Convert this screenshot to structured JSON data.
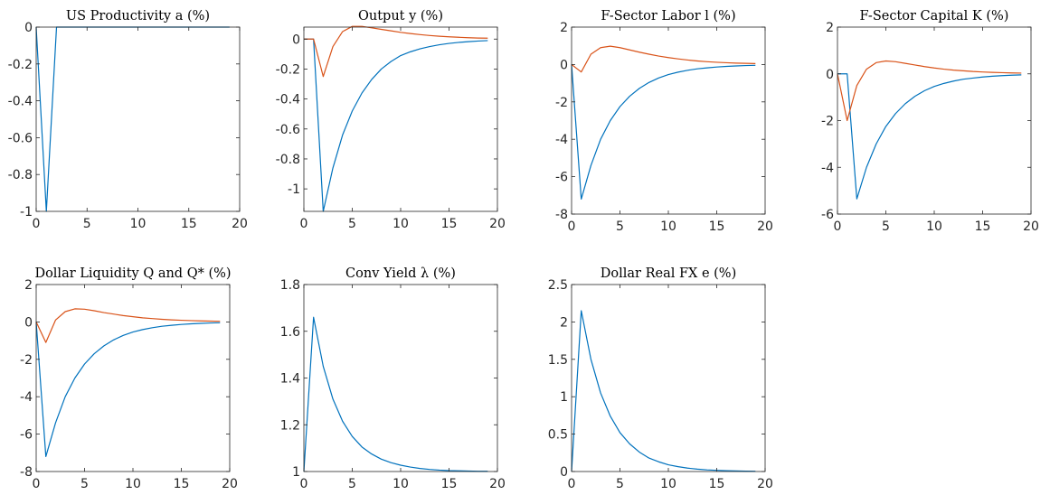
{
  "colors": {
    "series_1": "#0072BD",
    "series_2": "#D95319"
  },
  "chart_data": [
    {
      "type": "line",
      "title": "US Productivity a (%)",
      "xlim": [
        0,
        20
      ],
      "ylim": [
        -1,
        0
      ],
      "xticks": [
        0,
        5,
        10,
        15,
        20
      ],
      "yticks": [
        0,
        -0.2,
        -0.4,
        -0.6,
        -0.8,
        -1
      ],
      "xticklabels": [
        "0",
        "5",
        "10",
        "15",
        "20"
      ],
      "yticklabels": [
        "0",
        "-0.2",
        "-0.4",
        "-0.6",
        "-0.8",
        "-1"
      ],
      "series": [
        {
          "x": [
            0,
            1,
            2,
            3,
            4,
            5,
            6,
            7,
            8,
            9,
            10,
            11,
            12,
            13,
            14,
            15,
            16,
            17,
            18,
            19
          ],
          "values": [
            0,
            -1,
            0,
            0,
            0,
            0,
            0,
            0,
            0,
            0,
            0,
            0,
            0,
            0,
            0,
            0,
            0,
            0,
            0,
            0
          ],
          "color": "#0072BD"
        }
      ]
    },
    {
      "type": "line",
      "title": "Output y (%)",
      "xlim": [
        0,
        20
      ],
      "ylim": [
        -1.15,
        0.08
      ],
      "xticks": [
        0,
        5,
        10,
        15,
        20
      ],
      "yticks": [
        0,
        -0.2,
        -0.4,
        -0.6,
        -0.8,
        -1
      ],
      "xticklabels": [
        "0",
        "5",
        "10",
        "15",
        "20"
      ],
      "yticklabels": [
        "0",
        "-0.2",
        "-0.4",
        "-0.6",
        "-0.8",
        "-1"
      ],
      "series": [
        {
          "x": [
            0,
            1,
            2,
            3,
            4,
            5,
            6,
            7,
            8,
            9,
            10,
            11,
            12,
            13,
            14,
            15,
            16,
            17,
            18,
            19
          ],
          "values": [
            0,
            0,
            -1.15,
            -0.86,
            -0.64,
            -0.48,
            -0.36,
            -0.27,
            -0.2,
            -0.15,
            -0.11,
            -0.085,
            -0.065,
            -0.05,
            -0.038,
            -0.029,
            -0.022,
            -0.017,
            -0.013,
            -0.01
          ],
          "color": "#0072BD"
        },
        {
          "x": [
            0,
            1,
            2,
            3,
            4,
            5,
            6,
            7,
            8,
            9,
            10,
            11,
            12,
            13,
            14,
            15,
            16,
            17,
            18,
            19
          ],
          "values": [
            0,
            0,
            -0.25,
            -0.05,
            0.05,
            0.085,
            0.085,
            0.075,
            0.065,
            0.055,
            0.045,
            0.037,
            0.03,
            0.024,
            0.019,
            0.015,
            0.012,
            0.009,
            0.007,
            0.006
          ],
          "color": "#D95319"
        }
      ]
    },
    {
      "type": "line",
      "title": "F-Sector Labor l (%)",
      "xlim": [
        0,
        20
      ],
      "ylim": [
        -8,
        2
      ],
      "xticks": [
        0,
        5,
        10,
        15,
        20
      ],
      "yticks": [
        2,
        0,
        -2,
        -4,
        -6,
        -8
      ],
      "xticklabels": [
        "0",
        "5",
        "10",
        "15",
        "20"
      ],
      "yticklabels": [
        "2",
        "0",
        "-2",
        "-4",
        "-6",
        "-8"
      ],
      "series": [
        {
          "x": [
            0,
            1,
            2,
            3,
            4,
            5,
            6,
            7,
            8,
            9,
            10,
            11,
            12,
            13,
            14,
            15,
            16,
            17,
            18,
            19
          ],
          "values": [
            0,
            -7.2,
            -5.4,
            -4.0,
            -3.0,
            -2.25,
            -1.7,
            -1.28,
            -0.96,
            -0.72,
            -0.54,
            -0.41,
            -0.31,
            -0.23,
            -0.18,
            -0.135,
            -0.1,
            -0.076,
            -0.057,
            -0.043
          ],
          "color": "#0072BD"
        },
        {
          "x": [
            0,
            1,
            2,
            3,
            4,
            5,
            6,
            7,
            8,
            9,
            10,
            11,
            12,
            13,
            14,
            15,
            16,
            17,
            18,
            19
          ],
          "values": [
            0,
            -0.4,
            0.55,
            0.9,
            0.98,
            0.9,
            0.78,
            0.66,
            0.55,
            0.45,
            0.37,
            0.3,
            0.24,
            0.19,
            0.15,
            0.12,
            0.095,
            0.075,
            0.06,
            0.048
          ],
          "color": "#D95319"
        }
      ]
    },
    {
      "type": "line",
      "title": "F-Sector Capital K (%)",
      "xlim": [
        0,
        20
      ],
      "ylim": [
        -6,
        2
      ],
      "xticks": [
        0,
        5,
        10,
        15,
        20
      ],
      "yticks": [
        2,
        0,
        -2,
        -4,
        -6
      ],
      "xticklabels": [
        "0",
        "5",
        "10",
        "15",
        "20"
      ],
      "yticklabels": [
        "2",
        "0",
        "-2",
        "-4",
        "-6"
      ],
      "series": [
        {
          "x": [
            0,
            1,
            2,
            3,
            4,
            5,
            6,
            7,
            8,
            9,
            10,
            11,
            12,
            13,
            14,
            15,
            16,
            17,
            18,
            19
          ],
          "values": [
            0,
            0,
            -5.35,
            -4.0,
            -3.0,
            -2.25,
            -1.7,
            -1.28,
            -0.96,
            -0.72,
            -0.54,
            -0.41,
            -0.31,
            -0.23,
            -0.18,
            -0.135,
            -0.1,
            -0.076,
            -0.057,
            -0.043
          ],
          "color": "#0072BD"
        },
        {
          "x": [
            0,
            1,
            2,
            3,
            4,
            5,
            6,
            7,
            8,
            9,
            10,
            11,
            12,
            13,
            14,
            15,
            16,
            17,
            18,
            19
          ],
          "values": [
            0,
            -2.0,
            -0.5,
            0.2,
            0.48,
            0.55,
            0.52,
            0.45,
            0.38,
            0.31,
            0.25,
            0.2,
            0.16,
            0.13,
            0.1,
            0.08,
            0.063,
            0.05,
            0.04,
            0.032
          ],
          "color": "#D95319"
        }
      ]
    },
    {
      "type": "line",
      "title": "Dollar Liquidity Q and Q* (%)",
      "xlim": [
        0,
        20
      ],
      "ylim": [
        -8,
        2
      ],
      "xticks": [
        0,
        5,
        10,
        15,
        20
      ],
      "yticks": [
        2,
        0,
        -2,
        -4,
        -6,
        -8
      ],
      "xticklabels": [
        "0",
        "5",
        "10",
        "15",
        "20"
      ],
      "yticklabels": [
        "2",
        "0",
        "-2",
        "-4",
        "-6",
        "-8"
      ],
      "series": [
        {
          "x": [
            0,
            1,
            2,
            3,
            4,
            5,
            6,
            7,
            8,
            9,
            10,
            11,
            12,
            13,
            14,
            15,
            16,
            17,
            18,
            19
          ],
          "values": [
            0,
            -7.2,
            -5.4,
            -4.0,
            -3.0,
            -2.25,
            -1.7,
            -1.28,
            -0.96,
            -0.72,
            -0.54,
            -0.41,
            -0.31,
            -0.23,
            -0.18,
            -0.135,
            -0.1,
            -0.076,
            -0.057,
            -0.043
          ],
          "color": "#0072BD"
        },
        {
          "x": [
            0,
            1,
            2,
            3,
            4,
            5,
            6,
            7,
            8,
            9,
            10,
            11,
            12,
            13,
            14,
            15,
            16,
            17,
            18,
            19
          ],
          "values": [
            0,
            -1.1,
            0.1,
            0.55,
            0.7,
            0.68,
            0.6,
            0.5,
            0.42,
            0.34,
            0.28,
            0.22,
            0.18,
            0.14,
            0.11,
            0.09,
            0.07,
            0.055,
            0.044,
            0.035
          ],
          "color": "#D95319"
        }
      ]
    },
    {
      "type": "line",
      "title": "Conv Yield λ (%)",
      "xlim": [
        0,
        20
      ],
      "ylim": [
        1,
        1.8
      ],
      "xticks": [
        0,
        5,
        10,
        15,
        20
      ],
      "yticks": [
        1.8,
        1.6,
        1.4,
        1.2,
        1
      ],
      "xticklabels": [
        "0",
        "5",
        "10",
        "15",
        "20"
      ],
      "yticklabels": [
        "1.8",
        "1.6",
        "1.4",
        "1.2",
        "1"
      ],
      "series": [
        {
          "x": [
            0,
            1,
            2,
            3,
            4,
            5,
            6,
            7,
            8,
            9,
            10,
            11,
            12,
            13,
            14,
            15,
            16,
            17,
            18,
            19
          ],
          "values": [
            1.0,
            1.66,
            1.45,
            1.31,
            1.215,
            1.15,
            1.105,
            1.075,
            1.053,
            1.038,
            1.027,
            1.019,
            1.013,
            1.009,
            1.006,
            1.004,
            1.003,
            1.002,
            1.001,
            1.001
          ],
          "color": "#0072BD"
        }
      ]
    },
    {
      "type": "line",
      "title": "Dollar Real FX e (%)",
      "xlim": [
        0,
        20
      ],
      "ylim": [
        0,
        2.5
      ],
      "xticks": [
        0,
        5,
        10,
        15,
        20
      ],
      "yticks": [
        2.5,
        2,
        1.5,
        1,
        0.5,
        0
      ],
      "xticklabels": [
        "0",
        "5",
        "10",
        "15",
        "20"
      ],
      "yticklabels": [
        "2.5",
        "2",
        "1.5",
        "1",
        "0.5",
        "0"
      ],
      "series": [
        {
          "x": [
            0,
            1,
            2,
            3,
            4,
            5,
            6,
            7,
            8,
            9,
            10,
            11,
            12,
            13,
            14,
            15,
            16,
            17,
            18,
            19
          ],
          "values": [
            0,
            2.15,
            1.5,
            1.05,
            0.74,
            0.52,
            0.37,
            0.26,
            0.18,
            0.13,
            0.09,
            0.065,
            0.045,
            0.032,
            0.022,
            0.016,
            0.011,
            0.008,
            0.005,
            0.004
          ],
          "color": "#0072BD"
        }
      ]
    }
  ]
}
